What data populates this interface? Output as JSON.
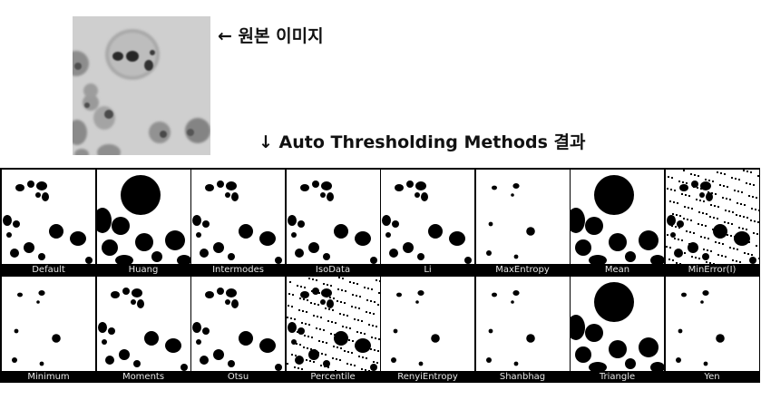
{
  "original": {
    "label": "← 원본 이미지"
  },
  "heading": {
    "label": "↓ Auto Thresholding Methods 결과"
  },
  "methods": [
    "Default",
    "Huang",
    "Intermodes",
    "IsoData",
    "Li",
    "MaxEntropy",
    "Mean",
    "MinError(I)",
    "Minimum",
    "Moments",
    "Otsu",
    "Percentile",
    "RenyiEntropy",
    "Shanbhag",
    "Triangle",
    "Yen"
  ]
}
